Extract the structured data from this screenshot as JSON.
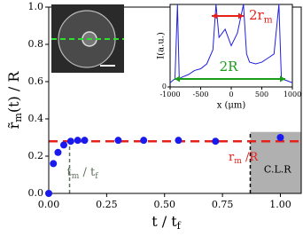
{
  "chart_data": [
    {
      "type": "scatter",
      "ylabel": {
        "main": "r̃",
        "sub": "m",
        "rest": "(t) / R"
      },
      "xlabel": {
        "main": "t / t",
        "sub": "f"
      },
      "x": [
        0,
        0.02,
        0.04,
        0.065,
        0.095,
        0.125,
        0.155,
        0.3,
        0.41,
        0.56,
        0.72,
        1.0
      ],
      "values": [
        0,
        0.16,
        0.22,
        0.26,
        0.28,
        0.285,
        0.285,
        0.285,
        0.285,
        0.285,
        0.28,
        0.3
      ],
      "color": "#1a1aee",
      "xlim": [
        0,
        1.09
      ],
      "ylim": [
        0,
        1
      ],
      "xticks": [
        {
          "value": 0,
          "label": "0.00"
        },
        {
          "value": 0.25,
          "label": "0.25"
        },
        {
          "value": 0.5,
          "label": "0.50"
        },
        {
          "value": 0.75,
          "label": "0.75"
        },
        {
          "value": 1,
          "label": "1.00"
        }
      ],
      "yticks": [
        {
          "value": 0,
          "label": "0.0"
        },
        {
          "value": 0.2,
          "label": "0.2"
        },
        {
          "value": 0.4,
          "label": "0.4"
        },
        {
          "value": 0.6,
          "label": "0.6"
        },
        {
          "value": 0.8,
          "label": "0.8"
        },
        {
          "value": 1,
          "label": "1.0"
        }
      ],
      "hline": {
        "value": 0.28,
        "color": "#e8201a",
        "label": {
          "main": "r",
          "sub": "m",
          "rest": " /R"
        }
      },
      "vline": {
        "value": 0.09,
        "color": "#607060",
        "label": {
          "main": "t",
          "sub": "m",
          "rest": " / t",
          "sub2": "f"
        }
      },
      "region": {
        "start": 0.87,
        "top": 0.33,
        "color": "#b0b0b0",
        "label": "C.L.R"
      }
    },
    {
      "type": "line",
      "xlabel": "x (μm)",
      "ylabel": "I(a.u.)",
      "x": [
        -1000,
        -920,
        -880,
        -850,
        -800,
        -700,
        -600,
        -500,
        -400,
        -300,
        -250,
        -200,
        -100,
        0,
        100,
        200,
        250,
        300,
        400,
        500,
        600,
        700,
        780,
        820,
        900,
        1000
      ],
      "values": [
        0.05,
        0.1,
        1.0,
        0.1,
        0.12,
        0.15,
        0.2,
        0.22,
        0.28,
        0.45,
        1.0,
        0.6,
        0.7,
        0.5,
        0.65,
        1.0,
        0.4,
        0.3,
        0.28,
        0.3,
        0.35,
        0.4,
        1.0,
        0.1,
        0.08,
        0.05
      ],
      "color": "#2020dd",
      "xlim": [
        -1000,
        1000
      ],
      "ylim": [
        0,
        1
      ],
      "xticks": [
        -1000,
        -500,
        0,
        500,
        1000
      ],
      "yticks": [
        0
      ],
      "annotations": [
        {
          "main": "2r",
          "sub": "m",
          "color": "#e8201a"
        },
        {
          "main": "2R",
          "color": "#1a9e1a"
        }
      ]
    }
  ]
}
